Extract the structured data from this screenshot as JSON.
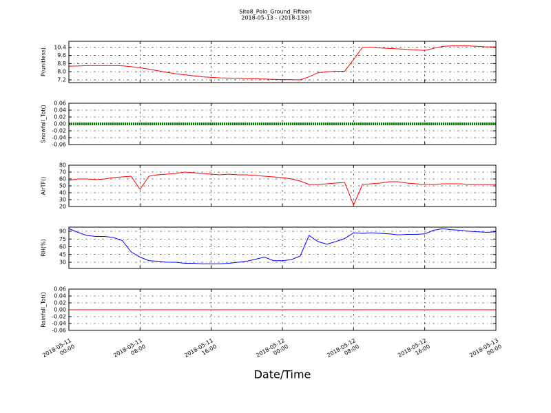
{
  "chart_data": [
    {
      "type": "line",
      "title": "Site8_Polo_Ground_Fifteen",
      "subtitle": "2018-05-13 - (2018-133)",
      "ylabel": "P(unitless)",
      "color": "#ff0000",
      "ylim": [
        6.93,
        11.0
      ],
      "yticks": [
        {
          "value": 7.2,
          "label": "7.2"
        },
        {
          "value": 8,
          "label": "8.0"
        },
        8.8,
        9.6,
        10.4
      ],
      "xlim": [
        "2018-05-11 00:00",
        "2018-05-13 00:00"
      ],
      "xticks": [
        "2018-05-11 00:00",
        "2018-05-11 08:00",
        "2018-05-11 16:00",
        "2018-05-12 00:00",
        "2018-05-12 08:00",
        "2018-05-12 16:00",
        "2018-05-13 00:00"
      ],
      "x": [
        "2018-05-11 00:00",
        "2018-05-11 01:00",
        "2018-05-11 02:00",
        "2018-05-11 03:00",
        "2018-05-11 04:00",
        "2018-05-11 05:00",
        "2018-05-11 06:00",
        "2018-05-11 07:00",
        "2018-05-11 08:00",
        "2018-05-11 09:00",
        "2018-05-11 10:00",
        "2018-05-11 11:00",
        "2018-05-11 12:00",
        "2018-05-11 13:00",
        "2018-05-11 14:00",
        "2018-05-11 15:00",
        "2018-05-11 16:00",
        "2018-05-11 17:00",
        "2018-05-11 18:00",
        "2018-05-11 19:00",
        "2018-05-11 20:00",
        "2018-05-11 21:00",
        "2018-05-11 22:00",
        "2018-05-11 23:00",
        "2018-05-12 00:00",
        "2018-05-12 01:00",
        "2018-05-12 02:00",
        "2018-05-12 03:00",
        "2018-05-12 04:00",
        "2018-05-12 05:00",
        "2018-05-12 06:00",
        "2018-05-12 07:00",
        "2018-05-12 08:00",
        "2018-05-12 09:00",
        "2018-05-12 10:00",
        "2018-05-12 11:00",
        "2018-05-12 12:00",
        "2018-05-12 13:00",
        "2018-05-12 14:00",
        "2018-05-12 15:00",
        "2018-05-12 16:00",
        "2018-05-12 17:00",
        "2018-05-12 18:00",
        "2018-05-12 19:00",
        "2018-05-12 20:00",
        "2018-05-12 21:00",
        "2018-05-12 22:00",
        "2018-05-12 23:00",
        "2018-05-13 00:00"
      ],
      "values": [
        8.55,
        8.57,
        8.6,
        8.6,
        8.6,
        8.6,
        8.58,
        8.5,
        8.4,
        8.25,
        8.1,
        7.95,
        7.8,
        7.7,
        7.6,
        7.5,
        7.45,
        7.4,
        7.38,
        7.35,
        7.32,
        7.3,
        7.28,
        7.25,
        7.23,
        7.22,
        7.2,
        7.5,
        7.9,
        8.0,
        8.05,
        8.05,
        9.2,
        10.4,
        10.4,
        10.35,
        10.3,
        10.25,
        10.2,
        10.15,
        10.1,
        10.3,
        10.5,
        10.55,
        10.55,
        10.55,
        10.5,
        10.45,
        10.45
      ]
    },
    {
      "type": "line",
      "ylabel": "Snowfall_Tot()",
      "color": "#008000",
      "ylim": [
        -0.06,
        0.06
      ],
      "yticks": [
        -0.06,
        -0.04,
        -0.02,
        {
          "value": 0,
          "label": "0.00"
        },
        0.02,
        0.04,
        0.06
      ],
      "xlim": [
        "2018-05-11 00:00",
        "2018-05-13 00:00"
      ],
      "xticks": [
        "2018-05-11 00:00",
        "2018-05-11 08:00",
        "2018-05-11 16:00",
        "2018-05-12 00:00",
        "2018-05-12 08:00",
        "2018-05-12 16:00",
        "2018-05-13 00:00"
      ],
      "x": [
        "2018-05-11 00:00",
        "2018-05-11 01:00",
        "2018-05-11 02:00",
        "2018-05-11 03:00",
        "2018-05-11 04:00",
        "2018-05-11 05:00",
        "2018-05-11 06:00",
        "2018-05-11 07:00",
        "2018-05-11 08:00",
        "2018-05-11 09:00",
        "2018-05-11 10:00",
        "2018-05-11 11:00",
        "2018-05-11 12:00",
        "2018-05-11 13:00",
        "2018-05-11 14:00",
        "2018-05-11 15:00",
        "2018-05-11 16:00",
        "2018-05-11 17:00",
        "2018-05-11 18:00",
        "2018-05-11 19:00",
        "2018-05-11 20:00",
        "2018-05-11 21:00",
        "2018-05-11 22:00",
        "2018-05-11 23:00",
        "2018-05-12 00:00",
        "2018-05-12 01:00",
        "2018-05-12 02:00",
        "2018-05-12 03:00",
        "2018-05-12 04:00",
        "2018-05-12 05:00",
        "2018-05-12 06:00",
        "2018-05-12 07:00",
        "2018-05-12 08:00",
        "2018-05-12 09:00",
        "2018-05-12 10:00",
        "2018-05-12 11:00",
        "2018-05-12 12:00",
        "2018-05-12 13:00",
        "2018-05-12 14:00",
        "2018-05-12 15:00",
        "2018-05-12 16:00",
        "2018-05-12 17:00",
        "2018-05-12 18:00",
        "2018-05-12 19:00",
        "2018-05-12 20:00",
        "2018-05-12 21:00",
        "2018-05-12 22:00",
        "2018-05-12 23:00",
        "2018-05-13 00:00"
      ],
      "values": [
        0,
        0,
        0,
        0,
        0,
        0,
        0,
        0,
        0,
        0,
        0,
        0,
        0,
        0,
        0,
        0,
        0,
        0,
        0,
        0,
        0,
        0,
        0,
        0,
        0,
        0,
        0,
        0,
        0,
        0,
        0,
        0,
        0,
        0,
        0,
        0,
        0,
        0,
        0,
        0,
        0,
        0,
        0,
        0,
        0,
        0,
        0,
        0,
        0
      ]
    },
    {
      "type": "line",
      "ylabel": "AirTF()",
      "color": "#ff0000",
      "ylim": [
        20,
        80
      ],
      "yticks": [
        20,
        30,
        40,
        50,
        60,
        70,
        80
      ],
      "xlim": [
        "2018-05-11 00:00",
        "2018-05-13 00:00"
      ],
      "xticks": [
        "2018-05-11 00:00",
        "2018-05-11 08:00",
        "2018-05-11 16:00",
        "2018-05-12 00:00",
        "2018-05-12 08:00",
        "2018-05-12 16:00",
        "2018-05-13 00:00"
      ],
      "x": [
        "2018-05-11 00:00",
        "2018-05-11 01:00",
        "2018-05-11 02:00",
        "2018-05-11 03:00",
        "2018-05-11 04:00",
        "2018-05-11 05:00",
        "2018-05-11 06:00",
        "2018-05-11 07:00",
        "2018-05-11 08:00",
        "2018-05-11 09:00",
        "2018-05-11 10:00",
        "2018-05-11 11:00",
        "2018-05-11 12:00",
        "2018-05-11 13:00",
        "2018-05-11 14:00",
        "2018-05-11 15:00",
        "2018-05-11 16:00",
        "2018-05-11 17:00",
        "2018-05-11 18:00",
        "2018-05-11 19:00",
        "2018-05-11 20:00",
        "2018-05-11 21:00",
        "2018-05-11 22:00",
        "2018-05-11 23:00",
        "2018-05-12 00:00",
        "2018-05-12 01:00",
        "2018-05-12 02:00",
        "2018-05-12 03:00",
        "2018-05-12 04:00",
        "2018-05-12 05:00",
        "2018-05-12 06:00",
        "2018-05-12 07:00",
        "2018-05-12 08:00",
        "2018-05-12 09:00",
        "2018-05-12 10:00",
        "2018-05-12 11:00",
        "2018-05-12 12:00",
        "2018-05-12 13:00",
        "2018-05-12 14:00",
        "2018-05-12 15:00",
        "2018-05-12 16:00",
        "2018-05-12 17:00",
        "2018-05-12 18:00",
        "2018-05-12 19:00",
        "2018-05-12 20:00",
        "2018-05-12 21:00",
        "2018-05-12 22:00",
        "2018-05-12 23:00",
        "2018-05-13 00:00"
      ],
      "values": [
        58,
        60,
        60,
        59,
        60,
        62,
        63,
        64,
        45,
        64,
        66,
        67,
        68,
        70,
        69,
        68,
        67,
        66,
        67,
        66,
        66,
        65,
        64,
        63,
        62,
        60,
        57,
        52,
        52,
        53,
        54,
        55,
        22,
        52,
        53,
        54,
        56,
        56,
        54,
        53,
        52,
        52,
        53,
        53,
        53,
        52,
        52,
        52,
        52
      ]
    },
    {
      "type": "line",
      "ylabel": "RH(%)",
      "color": "#0000ff",
      "ylim": [
        18,
        98
      ],
      "yticks": [
        30,
        45,
        60,
        75,
        90
      ],
      "xlim": [
        "2018-05-11 00:00",
        "2018-05-13 00:00"
      ],
      "xticks": [
        "2018-05-11 00:00",
        "2018-05-11 08:00",
        "2018-05-11 16:00",
        "2018-05-12 00:00",
        "2018-05-12 08:00",
        "2018-05-12 16:00",
        "2018-05-13 00:00"
      ],
      "x": [
        "2018-05-11 00:00",
        "2018-05-11 01:00",
        "2018-05-11 02:00",
        "2018-05-11 03:00",
        "2018-05-11 04:00",
        "2018-05-11 05:00",
        "2018-05-11 06:00",
        "2018-05-11 07:00",
        "2018-05-11 08:00",
        "2018-05-11 09:00",
        "2018-05-11 10:00",
        "2018-05-11 11:00",
        "2018-05-11 12:00",
        "2018-05-11 13:00",
        "2018-05-11 14:00",
        "2018-05-11 15:00",
        "2018-05-11 16:00",
        "2018-05-11 17:00",
        "2018-05-11 18:00",
        "2018-05-11 19:00",
        "2018-05-11 20:00",
        "2018-05-11 21:00",
        "2018-05-11 22:00",
        "2018-05-11 23:00",
        "2018-05-12 00:00",
        "2018-05-12 01:00",
        "2018-05-12 02:00",
        "2018-05-12 03:00",
        "2018-05-12 04:00",
        "2018-05-12 05:00",
        "2018-05-12 06:00",
        "2018-05-12 07:00",
        "2018-05-12 08:00",
        "2018-05-12 09:00",
        "2018-05-12 10:00",
        "2018-05-12 11:00",
        "2018-05-12 12:00",
        "2018-05-12 13:00",
        "2018-05-12 14:00",
        "2018-05-12 15:00",
        "2018-05-12 16:00",
        "2018-05-12 17:00",
        "2018-05-12 18:00",
        "2018-05-12 19:00",
        "2018-05-12 20:00",
        "2018-05-12 21:00",
        "2018-05-12 22:00",
        "2018-05-12 23:00",
        "2018-05-13 00:00"
      ],
      "values": [
        95,
        88,
        82,
        80,
        80,
        78,
        72,
        50,
        40,
        33,
        32,
        30,
        30,
        28,
        28,
        27,
        27,
        27,
        28,
        30,
        32,
        36,
        40,
        33,
        33,
        35,
        42,
        82,
        70,
        65,
        70,
        76,
        87,
        86,
        87,
        86,
        85,
        83,
        84,
        84,
        85,
        92,
        95,
        93,
        92,
        90,
        89,
        88,
        89
      ]
    },
    {
      "type": "line",
      "ylabel": "Rainfall_Tot()",
      "xlabel": "Date/Time",
      "color": "#ff0000",
      "ylim": [
        -0.06,
        0.06
      ],
      "yticks": [
        -0.06,
        -0.04,
        -0.02,
        {
          "value": 0,
          "label": "0.00"
        },
        0.02,
        0.04,
        0.06
      ],
      "xlim": [
        "2018-05-11 00:00",
        "2018-05-13 00:00"
      ],
      "xticks": [
        {
          "value": "2018-05-11 00:00",
          "label": "2018-05-11\n00:00"
        },
        {
          "value": "2018-05-11 08:00",
          "label": "2018-05-11\n08:00"
        },
        {
          "value": "2018-05-11 16:00",
          "label": "2018-05-11\n16:00"
        },
        {
          "value": "2018-05-12 00:00",
          "label": "2018-05-12\n00:00"
        },
        {
          "value": "2018-05-12 08:00",
          "label": "2018-05-12\n08:00"
        },
        {
          "value": "2018-05-12 16:00",
          "label": "2018-05-12\n16:00"
        },
        {
          "value": "2018-05-13 00:00",
          "label": "2018-05-13\n00:00"
        }
      ],
      "x": [
        "2018-05-11 00:00",
        "2018-05-11 01:00",
        "2018-05-11 02:00",
        "2018-05-11 03:00",
        "2018-05-11 04:00",
        "2018-05-11 05:00",
        "2018-05-11 06:00",
        "2018-05-11 07:00",
        "2018-05-11 08:00",
        "2018-05-11 09:00",
        "2018-05-11 10:00",
        "2018-05-11 11:00",
        "2018-05-11 12:00",
        "2018-05-11 13:00",
        "2018-05-11 14:00",
        "2018-05-11 15:00",
        "2018-05-11 16:00",
        "2018-05-11 17:00",
        "2018-05-11 18:00",
        "2018-05-11 19:00",
        "2018-05-11 20:00",
        "2018-05-11 21:00",
        "2018-05-11 22:00",
        "2018-05-11 23:00",
        "2018-05-12 00:00",
        "2018-05-12 01:00",
        "2018-05-12 02:00",
        "2018-05-12 03:00",
        "2018-05-12 04:00",
        "2018-05-12 05:00",
        "2018-05-12 06:00",
        "2018-05-12 07:00",
        "2018-05-12 08:00",
        "2018-05-12 09:00",
        "2018-05-12 10:00",
        "2018-05-12 11:00",
        "2018-05-12 12:00",
        "2018-05-12 13:00",
        "2018-05-12 14:00",
        "2018-05-12 15:00",
        "2018-05-12 16:00",
        "2018-05-12 17:00",
        "2018-05-12 18:00",
        "2018-05-12 19:00",
        "2018-05-12 20:00",
        "2018-05-12 21:00",
        "2018-05-12 22:00",
        "2018-05-12 23:00",
        "2018-05-13 00:00"
      ],
      "values": [
        0,
        0,
        0,
        0,
        0,
        0,
        0,
        0,
        0,
        0,
        0,
        0,
        0,
        0,
        0,
        0,
        0,
        0,
        0,
        0,
        0,
        0,
        0,
        0,
        0,
        0,
        0,
        0,
        0,
        0,
        0,
        0,
        0,
        0,
        0,
        0,
        0,
        0,
        0,
        0,
        0,
        0,
        0,
        0,
        0,
        0,
        0,
        0,
        0
      ]
    }
  ]
}
